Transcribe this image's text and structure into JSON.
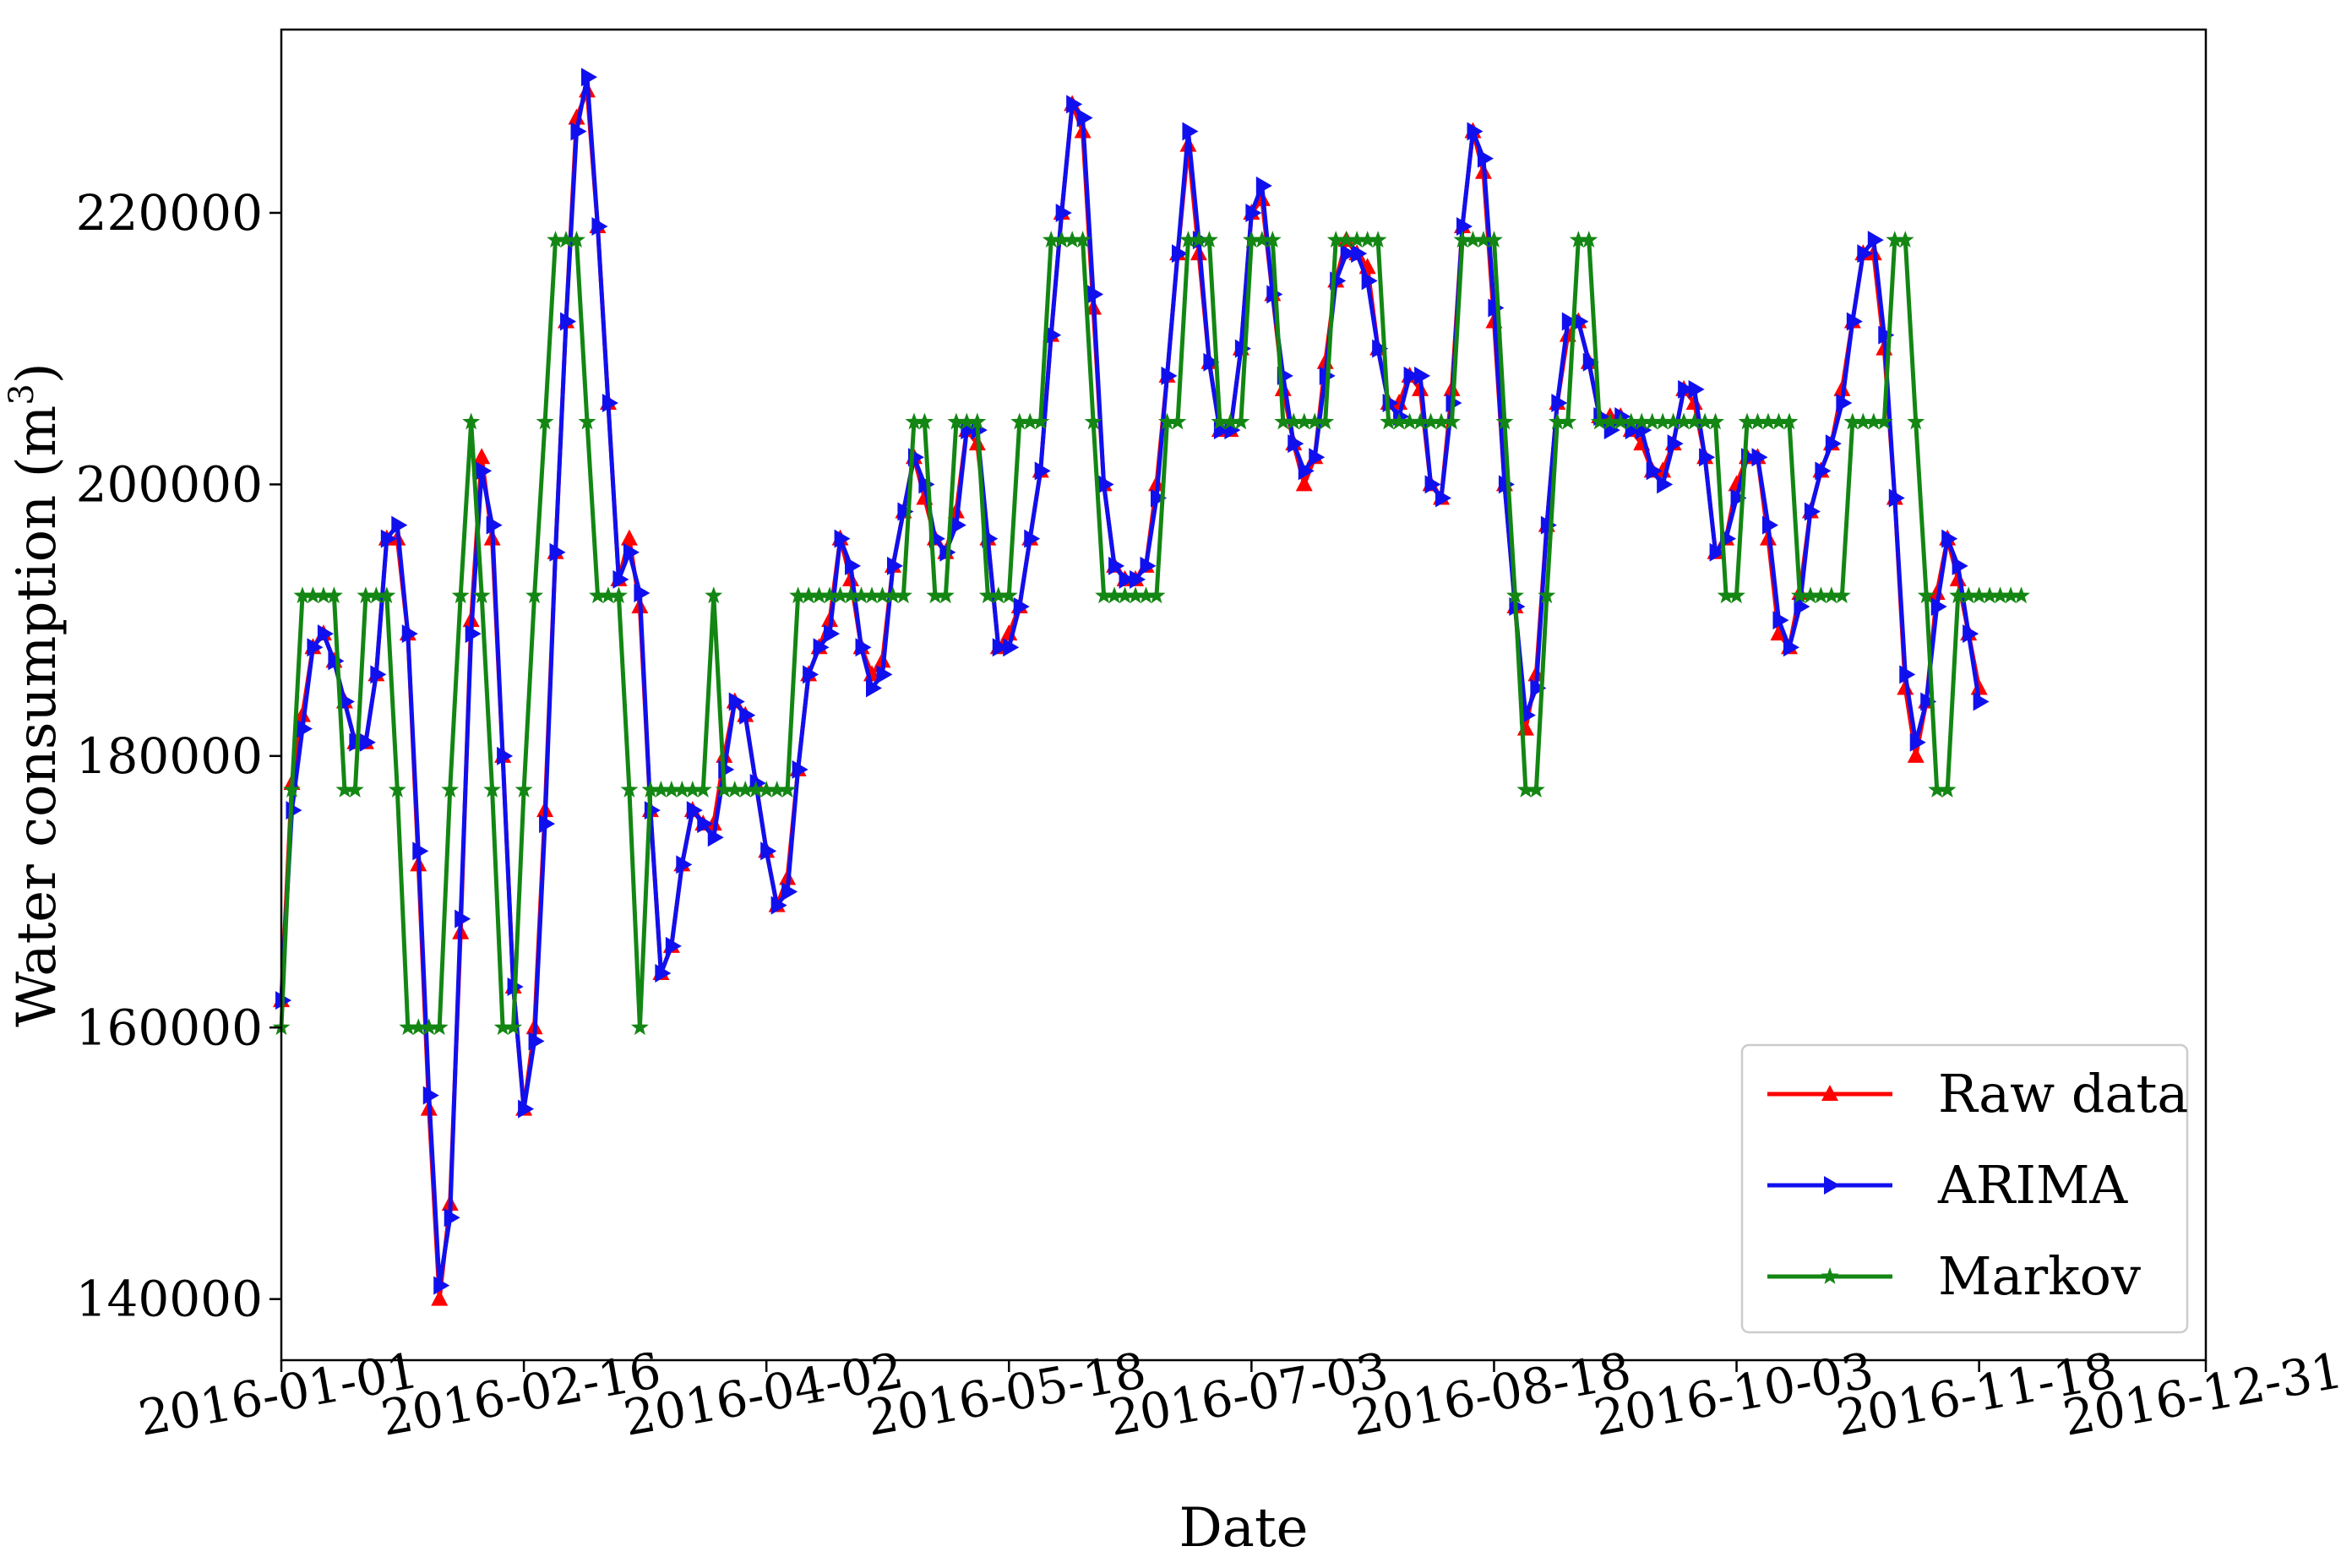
{
  "chart_data": {
    "type": "line",
    "xlabel": "Date",
    "ylabel": "Water consumption (m",
    "ylabel_superscript": "3",
    "ylabel_suffix": ")",
    "xlim": [
      "2016-01-01",
      "2016-12-31"
    ],
    "ylim": [
      135500,
      233500
    ],
    "x_ticks": [
      "2016-01-01",
      "2016-02-16",
      "2016-04-02",
      "2016-05-18",
      "2016-07-03",
      "2016-08-18",
      "2016-10-03",
      "2016-11-18",
      "2016-12-31"
    ],
    "y_ticks": [
      140000,
      160000,
      180000,
      200000,
      220000
    ],
    "y_tick_labels": [
      "140000",
      "160000",
      "180000",
      "200000",
      "220000"
    ],
    "grid": false,
    "legend_position": "lower-right",
    "x_start": "2016-01-01",
    "step_days": 2,
    "series": [
      {
        "name": "Raw data",
        "color": "#ff0000",
        "marker": "triangle-up",
        "values": [
          162000,
          178000,
          183000,
          188000,
          189000,
          187000,
          184000,
          181000,
          181000,
          186000,
          196000,
          196000,
          189000,
          172000,
          154000,
          140000,
          147000,
          167000,
          190000,
          202000,
          196000,
          180000,
          163000,
          154000,
          160000,
          176000,
          195000,
          212000,
          227000,
          229000,
          219000,
          206000,
          193000,
          196000,
          191000,
          176000,
          164000,
          166000,
          172000,
          176000,
          175000,
          175000,
          180000,
          184000,
          183000,
          178000,
          173000,
          169000,
          171000,
          179000,
          186000,
          188000,
          190000,
          196000,
          193000,
          188000,
          186000,
          187000,
          194000,
          198000,
          202000,
          199000,
          196000,
          195000,
          198000,
          204000,
          203000,
          196000,
          188000,
          189000,
          191000,
          196000,
          201000,
          211000,
          220000,
          228000,
          226000,
          213000,
          200000,
          194000,
          193000,
          193000,
          194000,
          200000,
          208000,
          217000,
          225000,
          217000,
          209000,
          204000,
          204000,
          210000,
          220000,
          221000,
          214000,
          207000,
          203000,
          200000,
          202000,
          209000,
          215000,
          218000,
          217000,
          216000,
          210000,
          206000,
          206000,
          208000,
          207000,
          200000,
          199000,
          207000,
          219000,
          226000,
          223000,
          212000,
          200000,
          191000,
          182000,
          186000,
          197000,
          206000,
          211000,
          212000,
          209000,
          205000,
          205000,
          205000,
          204000,
          203000,
          201000,
          201000,
          203000,
          207000,
          206000,
          202000,
          195000,
          196000,
          200000,
          202000,
          202000,
          196000,
          189000,
          188000,
          192000,
          198000,
          201000,
          203000,
          207000,
          212000,
          217000,
          217000,
          210000,
          199000,
          185000,
          180000,
          184000,
          192000,
          196000,
          193000,
          189000,
          185000
        ]
      },
      {
        "name": "ARIMA",
        "color": "#1010ee",
        "marker": "triangle-right",
        "values": [
          162000,
          176000,
          182000,
          188000,
          189000,
          187000,
          184000,
          181000,
          181000,
          186000,
          196000,
          197000,
          189000,
          173000,
          155000,
          141000,
          146000,
          168000,
          189000,
          201000,
          197000,
          180000,
          163000,
          154000,
          159000,
          175000,
          195000,
          212000,
          226000,
          230000,
          219000,
          206000,
          193000,
          195000,
          192000,
          176000,
          164000,
          166000,
          172000,
          176000,
          175000,
          174000,
          179000,
          184000,
          183000,
          178000,
          173000,
          169000,
          170000,
          179000,
          186000,
          188000,
          189000,
          196000,
          194000,
          188000,
          185000,
          186000,
          194000,
          198000,
          202000,
          200000,
          196000,
          195000,
          197000,
          204000,
          204000,
          196000,
          188000,
          188000,
          191000,
          196000,
          201000,
          211000,
          220000,
          228000,
          227000,
          214000,
          200000,
          194000,
          193000,
          193000,
          194000,
          199000,
          208000,
          217000,
          226000,
          218000,
          209000,
          204000,
          204000,
          210000,
          220000,
          222000,
          214000,
          208000,
          203000,
          201000,
          202000,
          208000,
          215000,
          217000,
          217000,
          215000,
          210000,
          206000,
          205000,
          208000,
          208000,
          200000,
          199000,
          206000,
          219000,
          226000,
          224000,
          213000,
          200000,
          191000,
          183000,
          185000,
          197000,
          206000,
          212000,
          212000,
          209000,
          205000,
          204000,
          205000,
          204000,
          204000,
          201000,
          200000,
          203000,
          207000,
          207000,
          202000,
          195000,
          196000,
          199000,
          202000,
          202000,
          197000,
          190000,
          188000,
          191000,
          198000,
          201000,
          203000,
          206000,
          212000,
          217000,
          218000,
          211000,
          199000,
          186000,
          181000,
          184000,
          191000,
          196000,
          194000,
          189000,
          184000
        ]
      },
      {
        "name": "Markov",
        "color": "#138613",
        "marker": "star",
        "values": [
          160000,
          177500,
          191800,
          191800,
          191800,
          191800,
          177500,
          177500,
          191800,
          191800,
          191800,
          177500,
          160000,
          160000,
          160000,
          160000,
          177500,
          191800,
          204600,
          191800,
          177500,
          160000,
          160000,
          177500,
          191800,
          204600,
          218000,
          218000,
          218000,
          204600,
          191800,
          191800,
          191800,
          177500,
          160000,
          177500,
          177500,
          177500,
          177500,
          177500,
          177500,
          191800,
          177500,
          177500,
          177500,
          177500,
          177500,
          177500,
          177500,
          191800,
          191800,
          191800,
          191800,
          191800,
          191800,
          191800,
          191800,
          191800,
          191800,
          191800,
          204600,
          204600,
          191800,
          191800,
          204600,
          204600,
          204600,
          191800,
          191800,
          191800,
          204600,
          204600,
          204600,
          218000,
          218000,
          218000,
          218000,
          204600,
          191800,
          191800,
          191800,
          191800,
          191800,
          191800,
          204600,
          204600,
          218000,
          218000,
          218000,
          204600,
          204600,
          204600,
          218000,
          218000,
          218000,
          204600,
          204600,
          204600,
          204600,
          204600,
          218000,
          218000,
          218000,
          218000,
          218000,
          204600,
          204600,
          204600,
          204600,
          204600,
          204600,
          204600,
          218000,
          218000,
          218000,
          218000,
          204600,
          191800,
          177500,
          177500,
          191800,
          204600,
          204600,
          218000,
          218000,
          204600,
          204600,
          204600,
          204600,
          204600,
          204600,
          204600,
          204600,
          204600,
          204600,
          204600,
          204600,
          191800,
          191800,
          204600,
          204600,
          204600,
          204600,
          204600,
          191800,
          191800,
          191800,
          191800,
          191800,
          204600,
          204600,
          204600,
          204600,
          218000,
          218000,
          204600,
          191800,
          177500,
          177500,
          191800,
          191800,
          191800,
          191800,
          191800,
          191800,
          191800
        ]
      }
    ]
  }
}
